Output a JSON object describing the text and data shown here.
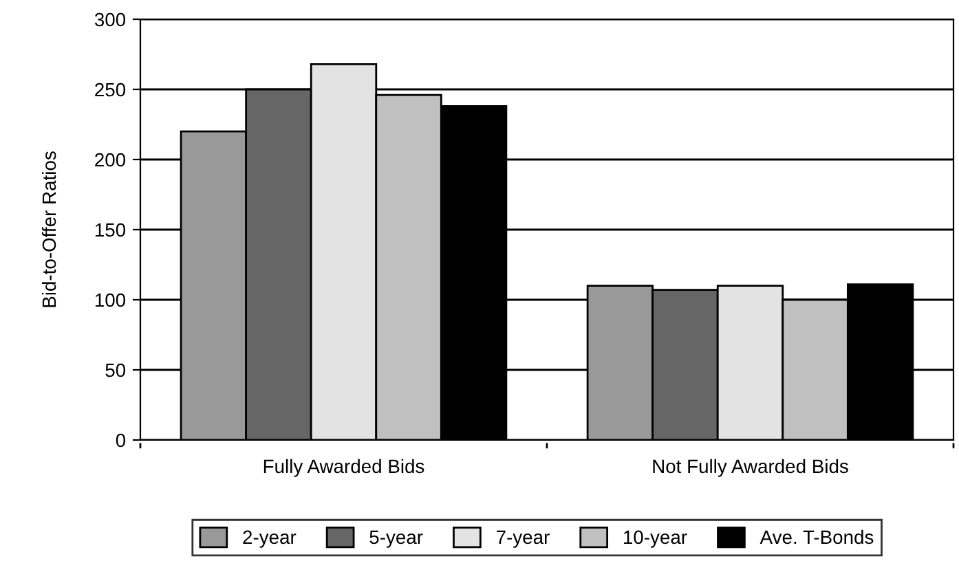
{
  "chart_data": {
    "type": "bar",
    "ylabel": "Bid-to-Offer Ratios",
    "categories": [
      "Fully Awarded Bids",
      "Not Fully Awarded Bids"
    ],
    "series": [
      {
        "name": "2-year",
        "color": "#999999",
        "values": [
          220,
          110
        ]
      },
      {
        "name": "5-year",
        "color": "#666666",
        "values": [
          250,
          107
        ]
      },
      {
        "name": "7-year",
        "color": "#e3e3e3",
        "values": [
          268,
          110
        ]
      },
      {
        "name": "10-year",
        "color": "#c0c0c0",
        "values": [
          246,
          100
        ]
      },
      {
        "name": "Ave. T-Bonds",
        "color": "#000000",
        "values": [
          238,
          111
        ]
      }
    ],
    "ylim": [
      0,
      300
    ],
    "yticks": [
      0,
      50,
      100,
      150,
      200,
      250,
      300
    ],
    "grid": "y",
    "legend": "bottom"
  }
}
